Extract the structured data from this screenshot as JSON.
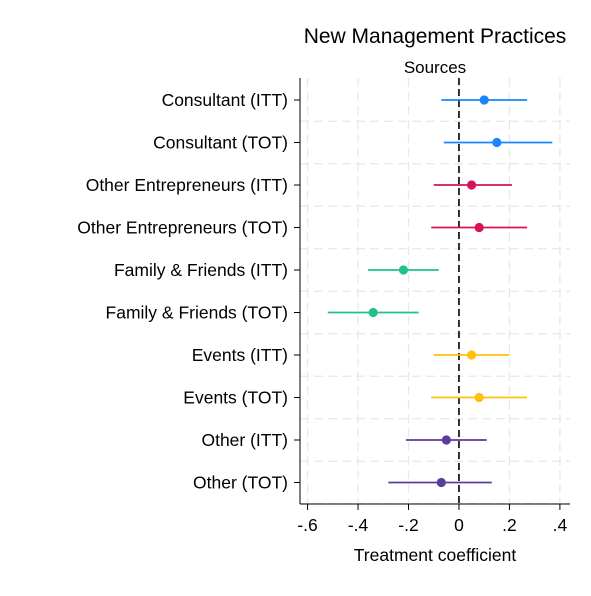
{
  "chart_data": {
    "type": "scatter",
    "title": "New Management Practices",
    "subtitle": "Sources",
    "xlabel": "Treatment coefficient",
    "ylabel": "",
    "xlim": [
      -0.63,
      0.44
    ],
    "xticks": [
      -0.6,
      -0.4,
      -0.2,
      0,
      0.2,
      0.4
    ],
    "xtick_labels": [
      "-.6",
      "-.4",
      "-.2",
      "0",
      ".2",
      ".4"
    ],
    "reference_line": {
      "x": 0,
      "style": "dashed"
    },
    "grid": true,
    "categories": [
      "Consultant (ITT)",
      "Consultant (TOT)",
      "Other Entrepreneurs (ITT)",
      "Other Entrepreneurs (TOT)",
      "Family & Friends (ITT)",
      "Family & Friends (TOT)",
      "Events (ITT)",
      "Events (TOT)",
      "Other (ITT)",
      "Other (TOT)"
    ],
    "points": [
      {
        "estimate": 0.1,
        "ci_low": -0.07,
        "ci_high": 0.27,
        "color": "#1a85ff"
      },
      {
        "estimate": 0.15,
        "ci_low": -0.06,
        "ci_high": 0.37,
        "color": "#1a85ff"
      },
      {
        "estimate": 0.05,
        "ci_low": -0.1,
        "ci_high": 0.21,
        "color": "#d41159"
      },
      {
        "estimate": 0.08,
        "ci_low": -0.11,
        "ci_high": 0.27,
        "color": "#d41159"
      },
      {
        "estimate": -0.22,
        "ci_low": -0.36,
        "ci_high": -0.08,
        "color": "#1fc28f"
      },
      {
        "estimate": -0.34,
        "ci_low": -0.52,
        "ci_high": -0.16,
        "color": "#1fc28f"
      },
      {
        "estimate": 0.05,
        "ci_low": -0.1,
        "ci_high": 0.2,
        "color": "#ffc20a"
      },
      {
        "estimate": 0.08,
        "ci_low": -0.11,
        "ci_high": 0.27,
        "color": "#ffc20a"
      },
      {
        "estimate": -0.05,
        "ci_low": -0.21,
        "ci_high": 0.11,
        "color": "#5d3a9b"
      },
      {
        "estimate": -0.07,
        "ci_low": -0.28,
        "ci_high": 0.13,
        "color": "#5d3a9b"
      }
    ]
  }
}
